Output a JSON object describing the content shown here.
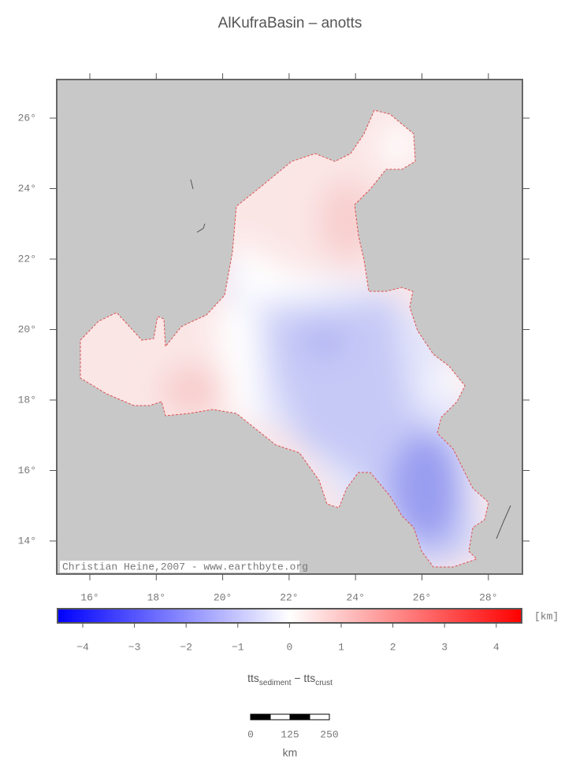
{
  "title": "AlKufraBasin – anotts",
  "map": {
    "lon_ticks": [
      "16°",
      "18°",
      "20°",
      "22°",
      "24°",
      "26°",
      "28°"
    ],
    "lat_ticks": [
      "26°",
      "24°",
      "22°",
      "20°",
      "18°",
      "16°",
      "14°"
    ],
    "credit": "Christian Heine,2007 - www.earthbyte.org"
  },
  "colorbar": {
    "ticks": [
      "−4",
      "−3",
      "−2",
      "−1",
      "0",
      "1",
      "2",
      "3",
      "4"
    ],
    "unit": "[km]",
    "label": {
      "base1": "tts",
      "sub1": "sediment",
      "mid": " − tts",
      "sub2": "crust"
    }
  },
  "scale_bar": {
    "ticks": [
      "0",
      "125",
      "250"
    ],
    "unit": "km"
  }
}
